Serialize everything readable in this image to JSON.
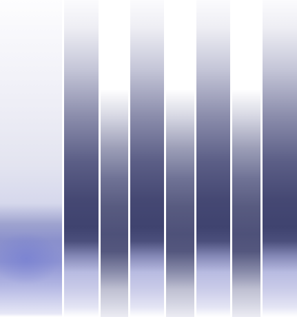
{
  "strips": [
    {
      "name": "panel-left",
      "tone": "light-blue"
    },
    {
      "name": "strip-1",
      "tone": "dark"
    },
    {
      "name": "strip-2",
      "tone": "light"
    },
    {
      "name": "strip-3",
      "tone": "dark"
    },
    {
      "name": "strip-4",
      "tone": "light"
    },
    {
      "name": "strip-5",
      "tone": "dark"
    },
    {
      "name": "strip-6",
      "tone": "light"
    },
    {
      "name": "strip-7",
      "tone": "dark"
    }
  ],
  "colors": {
    "dark": "#3f436f",
    "light": "#4e5179",
    "accent": "#8a90cc",
    "background": "#ffffff"
  }
}
